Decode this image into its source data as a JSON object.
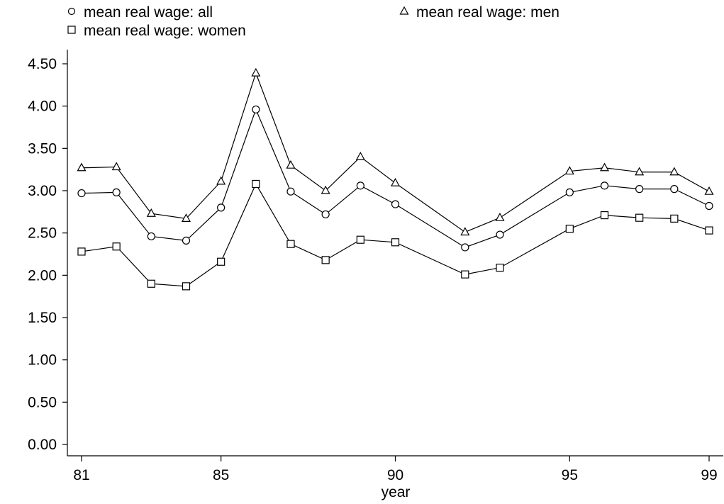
{
  "chart_data": {
    "type": "line",
    "title": "",
    "xlabel": "year",
    "ylabel": "",
    "x": [
      81,
      82,
      83,
      84,
      85,
      86,
      87,
      88,
      89,
      90,
      92,
      93,
      95,
      96,
      97,
      98,
      99
    ],
    "xticks": [
      {
        "value": 81,
        "label": "81"
      },
      {
        "value": 85,
        "label": "85"
      },
      {
        "value": 90,
        "label": "90"
      },
      {
        "value": 95,
        "label": "95"
      },
      {
        "value": 99,
        "label": "99"
      }
    ],
    "yticks": [
      {
        "value": 0,
        "label": "0.00"
      },
      {
        "value": 0.5,
        "label": "0.50"
      },
      {
        "value": 1,
        "label": "1.00"
      },
      {
        "value": 1.5,
        "label": "1.50"
      },
      {
        "value": 2,
        "label": "2.00"
      },
      {
        "value": 2.5,
        "label": "2.50"
      },
      {
        "value": 3,
        "label": "3.00"
      },
      {
        "value": 3.5,
        "label": "3.50"
      },
      {
        "value": 4,
        "label": "4.00"
      },
      {
        "value": 4.5,
        "label": "4.50"
      }
    ],
    "xlim": [
      81,
      99
    ],
    "ylim": [
      0,
      4.5
    ],
    "grid": false,
    "legend_position": "top",
    "series": [
      {
        "name": "mean real wage: all",
        "marker": "circle",
        "values": [
          2.97,
          2.98,
          2.46,
          2.41,
          2.8,
          3.96,
          2.99,
          2.72,
          3.06,
          2.84,
          2.33,
          2.48,
          2.98,
          3.06,
          3.02,
          3.02,
          2.82
        ]
      },
      {
        "name": "mean real wage: men",
        "marker": "triangle",
        "values": [
          3.27,
          3.28,
          2.73,
          2.67,
          3.11,
          4.39,
          3.3,
          3.0,
          3.4,
          3.09,
          2.51,
          2.68,
          3.23,
          3.27,
          3.22,
          3.22,
          2.99
        ]
      },
      {
        "name": "mean real wage: women",
        "marker": "square",
        "values": [
          2.28,
          2.34,
          1.9,
          1.87,
          2.16,
          3.08,
          2.37,
          2.18,
          2.42,
          2.39,
          2.01,
          2.09,
          2.55,
          2.71,
          2.68,
          2.67,
          2.53
        ]
      }
    ],
    "colors": {
      "line": "#000000",
      "background": "#ffffff"
    }
  }
}
